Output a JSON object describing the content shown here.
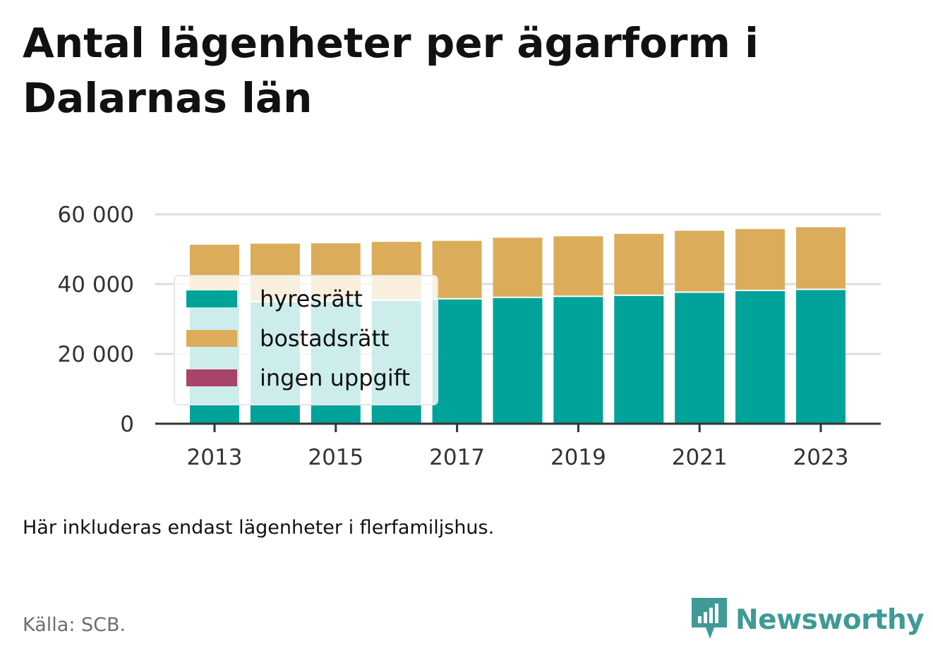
{
  "title": "Antal lägenheter per ägarform i Dalarnas län",
  "note": "Här inkluderas endast lägenheter i flerfamiljshus.",
  "source": "Källa: SCB.",
  "brand": {
    "name": "Newsworthy",
    "icon": "newsworthy-logo-icon"
  },
  "colors": {
    "hyresratt": "#00a39a",
    "bostadsratt": "#dbad5b",
    "ingen_uppgift": "#a8436a",
    "grid": "#dddddd",
    "axis": "#333333",
    "brand": "#3f9a96"
  },
  "chart_data": {
    "type": "bar",
    "stacked": true,
    "title": "Antal lägenheter per ägarform i Dalarnas län",
    "xlabel": "",
    "ylabel": "",
    "categories": [
      "2013",
      "2014",
      "2015",
      "2016",
      "2017",
      "2018",
      "2019",
      "2020",
      "2021",
      "2022",
      "2023"
    ],
    "x_tick_labels": [
      "2013",
      "2015",
      "2017",
      "2019",
      "2021",
      "2023"
    ],
    "y_tick_labels": [
      "0",
      "20 000",
      "40 000",
      "60 000"
    ],
    "y_ticks": [
      0,
      20000,
      40000,
      60000
    ],
    "ylim": [
      0,
      60000
    ],
    "grid": true,
    "legend_position": "top-left",
    "series": [
      {
        "name": "hyresrätt",
        "color": "#00a39a",
        "values": [
          34600,
          34800,
          35000,
          35200,
          35600,
          36000,
          36300,
          36600,
          37500,
          38000,
          38300
        ]
      },
      {
        "name": "bostadsrätt",
        "color": "#dbad5b",
        "values": [
          16700,
          16800,
          16700,
          16900,
          16800,
          17300,
          17400,
          17800,
          17800,
          17800,
          18000
        ]
      },
      {
        "name": "ingen uppgift",
        "color": "#a8436a",
        "values": [
          0,
          0,
          0,
          0,
          0,
          0,
          0,
          0,
          0,
          0,
          0
        ]
      }
    ]
  }
}
